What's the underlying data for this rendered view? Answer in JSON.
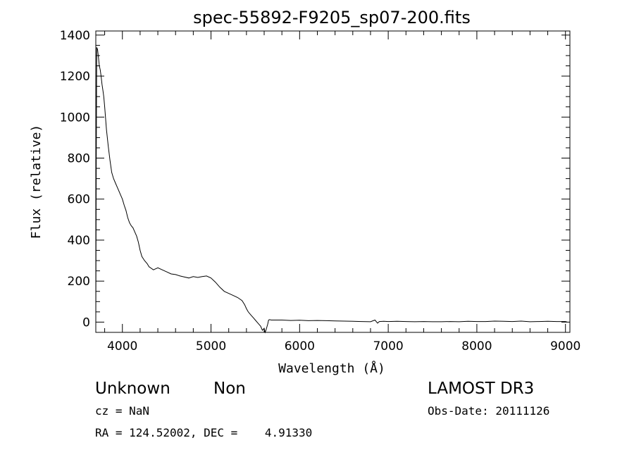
{
  "chart_data": {
    "type": "line",
    "title": "spec-55892-F9205_sp07-200.fits",
    "xlabel": "Wavelength (Å)",
    "ylabel": "Flux (relative)",
    "xlim": [
      3700,
      9050
    ],
    "ylim": [
      -50,
      1420
    ],
    "xticks": [
      4000,
      5000,
      6000,
      7000,
      8000,
      9000
    ],
    "yticks": [
      0,
      200,
      400,
      600,
      800,
      1000,
      1200,
      1400
    ],
    "grid": false,
    "series": [
      {
        "x": [
          3700,
          3705,
          3710,
          3720,
          3730,
          3740,
          3750,
          3760,
          3770,
          3780,
          3790,
          3800,
          3820,
          3840,
          3860,
          3880,
          3900,
          3920,
          3940,
          3960,
          3980,
          4000,
          4020,
          4040,
          4060,
          4080,
          4100,
          4120,
          4140,
          4160,
          4180,
          4200,
          4220,
          4250,
          4280,
          4300,
          4350,
          4400,
          4450,
          4500,
          4550,
          4600,
          4650,
          4700,
          4750,
          4800,
          4850,
          4900,
          4950,
          5000,
          5050,
          5100,
          5150,
          5200,
          5250,
          5300,
          5350,
          5380,
          5400,
          5420,
          5450,
          5480,
          5500,
          5520,
          5540,
          5560,
          5580,
          5600,
          5610,
          5620,
          5640,
          5650,
          5660,
          5680,
          5700,
          5800,
          5900,
          6000,
          6100,
          6200,
          6300,
          6400,
          6500,
          6600,
          6700,
          6800,
          6850,
          6880,
          6900,
          6950,
          7000,
          7100,
          7200,
          7300,
          7400,
          7500,
          7600,
          7700,
          7800,
          7900,
          8000,
          8100,
          8200,
          8300,
          8400,
          8500,
          8600,
          8700,
          8800,
          8900,
          9000,
          9020
        ],
        "y": [
          -10,
          760,
          1340,
          1330,
          1290,
          1250,
          1230,
          1200,
          1160,
          1130,
          1100,
          1050,
          940,
          860,
          790,
          730,
          700,
          680,
          660,
          640,
          620,
          600,
          570,
          545,
          510,
          485,
          470,
          460,
          440,
          420,
          390,
          350,
          320,
          300,
          285,
          270,
          255,
          265,
          255,
          245,
          235,
          232,
          225,
          220,
          215,
          222,
          218,
          222,
          225,
          215,
          195,
          170,
          150,
          140,
          130,
          120,
          105,
          85,
          65,
          50,
          35,
          20,
          10,
          0,
          -10,
          -20,
          -40,
          -30,
          -55,
          -40,
          -10,
          10,
          12,
          10,
          10,
          10,
          8,
          9,
          7,
          8,
          7,
          6,
          5,
          4,
          3,
          2,
          10,
          -5,
          3,
          4,
          3,
          4,
          3,
          2,
          3,
          2,
          2,
          3,
          2,
          4,
          3,
          3,
          5,
          4,
          3,
          5,
          2,
          3,
          4,
          3,
          3,
          0
        ]
      }
    ]
  },
  "info": {
    "object_class": "Unknown",
    "object_subclass": "Non",
    "cz": "cz = NaN",
    "coords": "RA = 124.52002, DEC =    4.91330",
    "survey": "LAMOST DR3",
    "obs_date": "Obs-Date: 20111126"
  }
}
